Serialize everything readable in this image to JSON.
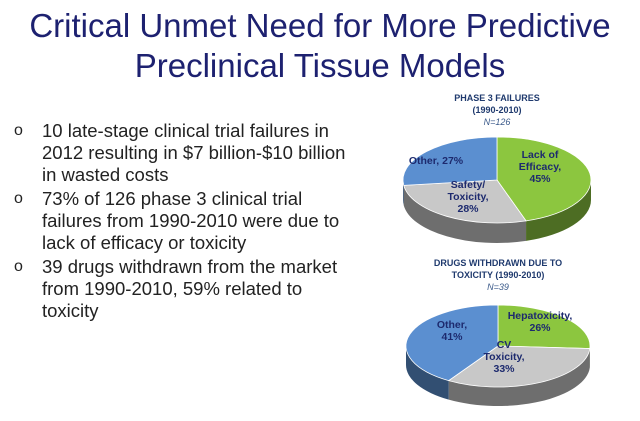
{
  "title": {
    "line1": "Critical Unmet Need for More Predictive",
    "line2": "Preclinical Tissue Models"
  },
  "bullets": [
    {
      "marker": "o",
      "text": "10 late-stage clinical trial failures in 2012 resulting in $7 billion-$10 billion in wasted costs"
    },
    {
      "marker": "o",
      "text": "73% of 126 phase 3 clinical trial failures from 1990-2010 were due to lack of efficacy or toxicity"
    },
    {
      "marker": "o",
      "text": "39 drugs withdrawn from the market from 1990-2010, 59% related to toxicity"
    }
  ],
  "chart_data": [
    {
      "type": "pie",
      "title": "PHASE 3 FAILURES",
      "subtitle": "(1990-2010)",
      "n_label": "N=126",
      "slices": [
        {
          "label": "Lack of Efficacy",
          "value": 45,
          "text": [
            "Lack of",
            "Efficacy,",
            "45%"
          ],
          "color": "#8cc63f"
        },
        {
          "label": "Safety/Toxicity",
          "value": 28,
          "text": [
            "Safety/",
            "Toxicity,",
            "28%"
          ],
          "color": "#c8c8c8"
        },
        {
          "label": "Other",
          "value": 27,
          "text": [
            "Other, 27%"
          ],
          "color": "#5b8fd0"
        }
      ]
    },
    {
      "type": "pie",
      "title": "DRUGS WITHDRAWN DUE TO",
      "subtitle": "TOXICITY (1990-2010)",
      "n_label": "N=39",
      "slices": [
        {
          "label": "Hepatoxicity",
          "value": 26,
          "text": [
            "Hepatoxicity,",
            "26%"
          ],
          "color": "#8cc63f"
        },
        {
          "label": "CV Toxicity",
          "value": 33,
          "text": [
            "CV",
            "Toxicity,",
            "33%"
          ],
          "color": "#c8c8c8"
        },
        {
          "label": "Other",
          "value": 41,
          "text": [
            "Other,",
            "41%"
          ],
          "color": "#5b8fd0"
        }
      ]
    }
  ]
}
